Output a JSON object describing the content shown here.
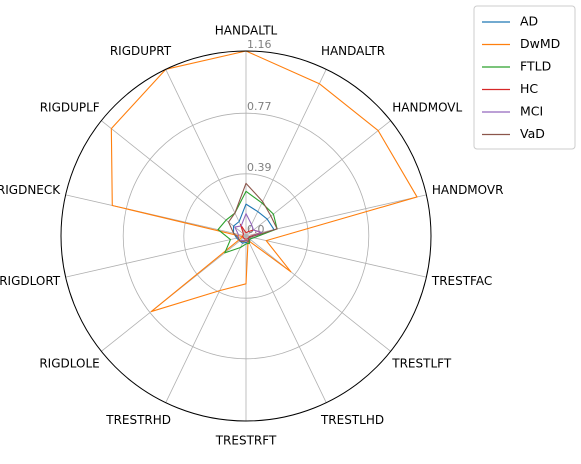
{
  "chart_data": {
    "type": "radar",
    "title": "",
    "axes": [
      "HANDALTL",
      "HANDALTR",
      "HANDMOVL",
      "HANDMOVR",
      "TRESTFAC",
      "TRESTLFT",
      "TRESTLHD",
      "TRESTRFT",
      "TRESTRHD",
      "RIGDLOLE",
      "RIGDLORT",
      "RIGDNECK",
      "RIGDUPLF",
      "RIGDUPRT"
    ],
    "radial_ticks": [
      0.0,
      0.39,
      0.77,
      1.16
    ],
    "radial_tick_labels": [
      "0.0",
      "0.39",
      "0.77",
      "1.16"
    ],
    "rlim": [
      0,
      1.16
    ],
    "grid": true,
    "legend_position": "top-right",
    "series": [
      {
        "name": "AD",
        "color": "#1f77b4",
        "values": [
          0.2,
          0.17,
          0.17,
          0.18,
          0.05,
          0.03,
          0.05,
          0.04,
          0.05,
          0.05,
          0.06,
          0.08,
          0.1,
          0.1
        ]
      },
      {
        "name": "DwMD",
        "color": "#ff7f0e",
        "values": [
          1.16,
          1.06,
          1.06,
          1.1,
          0.13,
          0.36,
          0.03,
          0.3,
          0.38,
          0.76,
          0.02,
          0.86,
          1.08,
          1.16
        ]
      },
      {
        "name": "FTLD",
        "color": "#2ca02c",
        "values": [
          0.28,
          0.23,
          0.22,
          0.2,
          0.05,
          0.03,
          0.05,
          0.05,
          0.08,
          0.17,
          0.1,
          0.18,
          0.16,
          0.16
        ]
      },
      {
        "name": "HC",
        "color": "#d62728",
        "values": [
          0.02,
          0.03,
          0.06,
          0.1,
          0.02,
          0.02,
          0.02,
          0.02,
          0.02,
          0.02,
          0.02,
          0.02,
          0.02,
          0.08
        ]
      },
      {
        "name": "MCI",
        "color": "#9467bd",
        "values": [
          0.14,
          0.08,
          0.06,
          0.1,
          0.03,
          0.02,
          0.03,
          0.03,
          0.03,
          0.05,
          0.05,
          0.05,
          0.09,
          0.07
        ]
      },
      {
        "name": "VaD",
        "color": "#8c564b",
        "values": [
          0.33,
          0.24,
          0.2,
          0.2,
          0.03,
          0.02,
          0.04,
          0.03,
          0.04,
          0.05,
          0.05,
          0.08,
          0.14,
          0.16
        ]
      }
    ]
  }
}
